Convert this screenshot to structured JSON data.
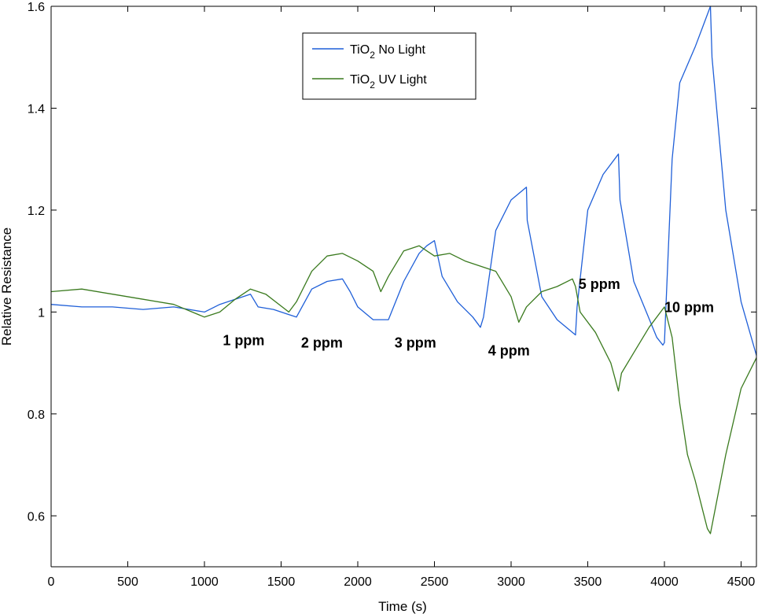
{
  "chart_data": {
    "type": "line",
    "title": "",
    "xlabel": "Time (s)",
    "ylabel": "Relative Resistance",
    "xlim": [
      0,
      4600
    ],
    "ylim": [
      0.5,
      1.6
    ],
    "xticks": [
      0,
      500,
      1000,
      1500,
      2000,
      2500,
      3000,
      3500,
      4000,
      4500
    ],
    "yticks": [
      0.6,
      0.8,
      1,
      1.2,
      1.4,
      1.6
    ],
    "ytick_labels": [
      "0.6",
      "0.8",
      "1",
      "1.2",
      "1.4",
      "1.6"
    ],
    "grid": false,
    "legend_position": "top-center",
    "series": [
      {
        "name": "TiO2 No Light",
        "legend_base": "TiO",
        "legend_sub": "2",
        "legend_suffix": " No Light",
        "color": "#1f5fd8",
        "x": [
          0,
          200,
          400,
          600,
          800,
          1000,
          1100,
          1200,
          1300,
          1350,
          1450,
          1550,
          1600,
          1700,
          1800,
          1900,
          1950,
          2000,
          2100,
          2200,
          2300,
          2400,
          2450,
          2500,
          2550,
          2650,
          2750,
          2800,
          2820,
          2900,
          3000,
          3100,
          3105,
          3200,
          3300,
          3420,
          3430,
          3500,
          3600,
          3700,
          3710,
          3800,
          3950,
          3990,
          4000,
          4050,
          4100,
          4200,
          4250,
          4300,
          4310,
          4400,
          4500,
          4600
        ],
        "y": [
          1.015,
          1.01,
          1.01,
          1.005,
          1.01,
          1.0,
          1.015,
          1.025,
          1.035,
          1.01,
          1.005,
          0.995,
          0.99,
          1.045,
          1.06,
          1.065,
          1.04,
          1.01,
          0.985,
          0.985,
          1.06,
          1.115,
          1.13,
          1.14,
          1.07,
          1.02,
          0.99,
          0.97,
          0.99,
          1.16,
          1.22,
          1.245,
          1.18,
          1.03,
          0.985,
          0.955,
          1.01,
          1.2,
          1.27,
          1.31,
          1.22,
          1.06,
          0.95,
          0.935,
          0.94,
          1.3,
          1.45,
          1.52,
          1.56,
          1.6,
          1.5,
          1.2,
          1.02,
          0.915
        ]
      },
      {
        "name": "TiO2 UV Light",
        "legend_base": "TiO",
        "legend_sub": "2",
        "legend_suffix": " UV Light",
        "color": "#3a7a1e",
        "x": [
          0,
          200,
          400,
          600,
          800,
          1000,
          1100,
          1200,
          1300,
          1400,
          1550,
          1600,
          1700,
          1800,
          1900,
          2000,
          2100,
          2150,
          2200,
          2300,
          2400,
          2500,
          2600,
          2700,
          2800,
          2900,
          3000,
          3050,
          3100,
          3200,
          3300,
          3400,
          3420,
          3450,
          3550,
          3650,
          3700,
          3720,
          3800,
          3900,
          4000,
          4050,
          4100,
          4150,
          4200,
          4250,
          4280,
          4300,
          4400,
          4500,
          4600
        ],
        "y": [
          1.04,
          1.045,
          1.035,
          1.025,
          1.015,
          0.99,
          1.0,
          1.025,
          1.045,
          1.035,
          1.0,
          1.02,
          1.08,
          1.11,
          1.115,
          1.1,
          1.08,
          1.04,
          1.07,
          1.12,
          1.13,
          1.11,
          1.115,
          1.1,
          1.09,
          1.08,
          1.03,
          0.98,
          1.01,
          1.04,
          1.05,
          1.065,
          1.05,
          1.0,
          0.96,
          0.9,
          0.845,
          0.88,
          0.92,
          0.97,
          1.01,
          0.95,
          0.82,
          0.72,
          0.67,
          0.61,
          0.575,
          0.565,
          0.72,
          0.85,
          0.91
        ]
      }
    ],
    "annotations": [
      {
        "text": "1 ppm",
        "x": 1120,
        "y": 0.935
      },
      {
        "text": "2 ppm",
        "x": 1630,
        "y": 0.93
      },
      {
        "text": "3 ppm",
        "x": 2240,
        "y": 0.93
      },
      {
        "text": "4 ppm",
        "x": 2850,
        "y": 0.915
      },
      {
        "text": "5 ppm",
        "x": 3440,
        "y": 1.045
      },
      {
        "text": "10 ppm",
        "x": 4000,
        "y": 1.0
      }
    ]
  }
}
